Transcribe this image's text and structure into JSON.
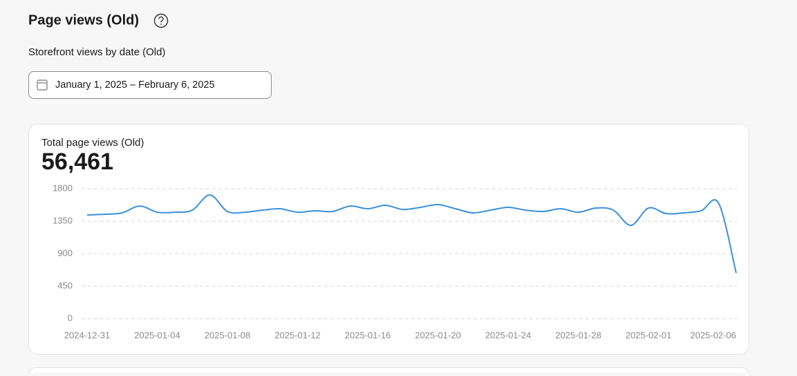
{
  "header": {
    "title": "Page views (Old)",
    "subtitle": "Storefront views by date (Old)",
    "date_range": "January 1, 2025 – February 6, 2025"
  },
  "card": {
    "label": "Total page views (Old)",
    "total": "56,461"
  },
  "chart_data": {
    "type": "line",
    "categories": [
      "2024-12-31",
      null,
      null,
      null,
      "2025-01-04",
      null,
      null,
      null,
      "2025-01-08",
      null,
      null,
      null,
      "2025-01-12",
      null,
      null,
      null,
      "2025-01-16",
      null,
      null,
      null,
      "2025-01-20",
      null,
      null,
      null,
      "2025-01-24",
      null,
      null,
      null,
      "2025-01-28",
      null,
      null,
      null,
      "2025-02-01",
      null,
      null,
      null,
      null,
      "2025-02-06"
    ],
    "series": [
      {
        "name": "Page views",
        "color": "#3b8fdc",
        "values": [
          1436,
          1446,
          1465,
          1560,
          1474,
          1474,
          1503,
          1714,
          1484,
          1474,
          1503,
          1522,
          1474,
          1494,
          1484,
          1560,
          1522,
          1570,
          1513,
          1541,
          1580,
          1522,
          1465,
          1503,
          1541,
          1503,
          1484,
          1522,
          1474,
          1532,
          1503,
          1292,
          1532,
          1455,
          1465,
          1494,
          1599,
          632
        ]
      }
    ],
    "ylim": [
      0,
      1800
    ],
    "yticks": [
      0,
      450,
      900,
      1350,
      1800
    ],
    "grid": true
  }
}
